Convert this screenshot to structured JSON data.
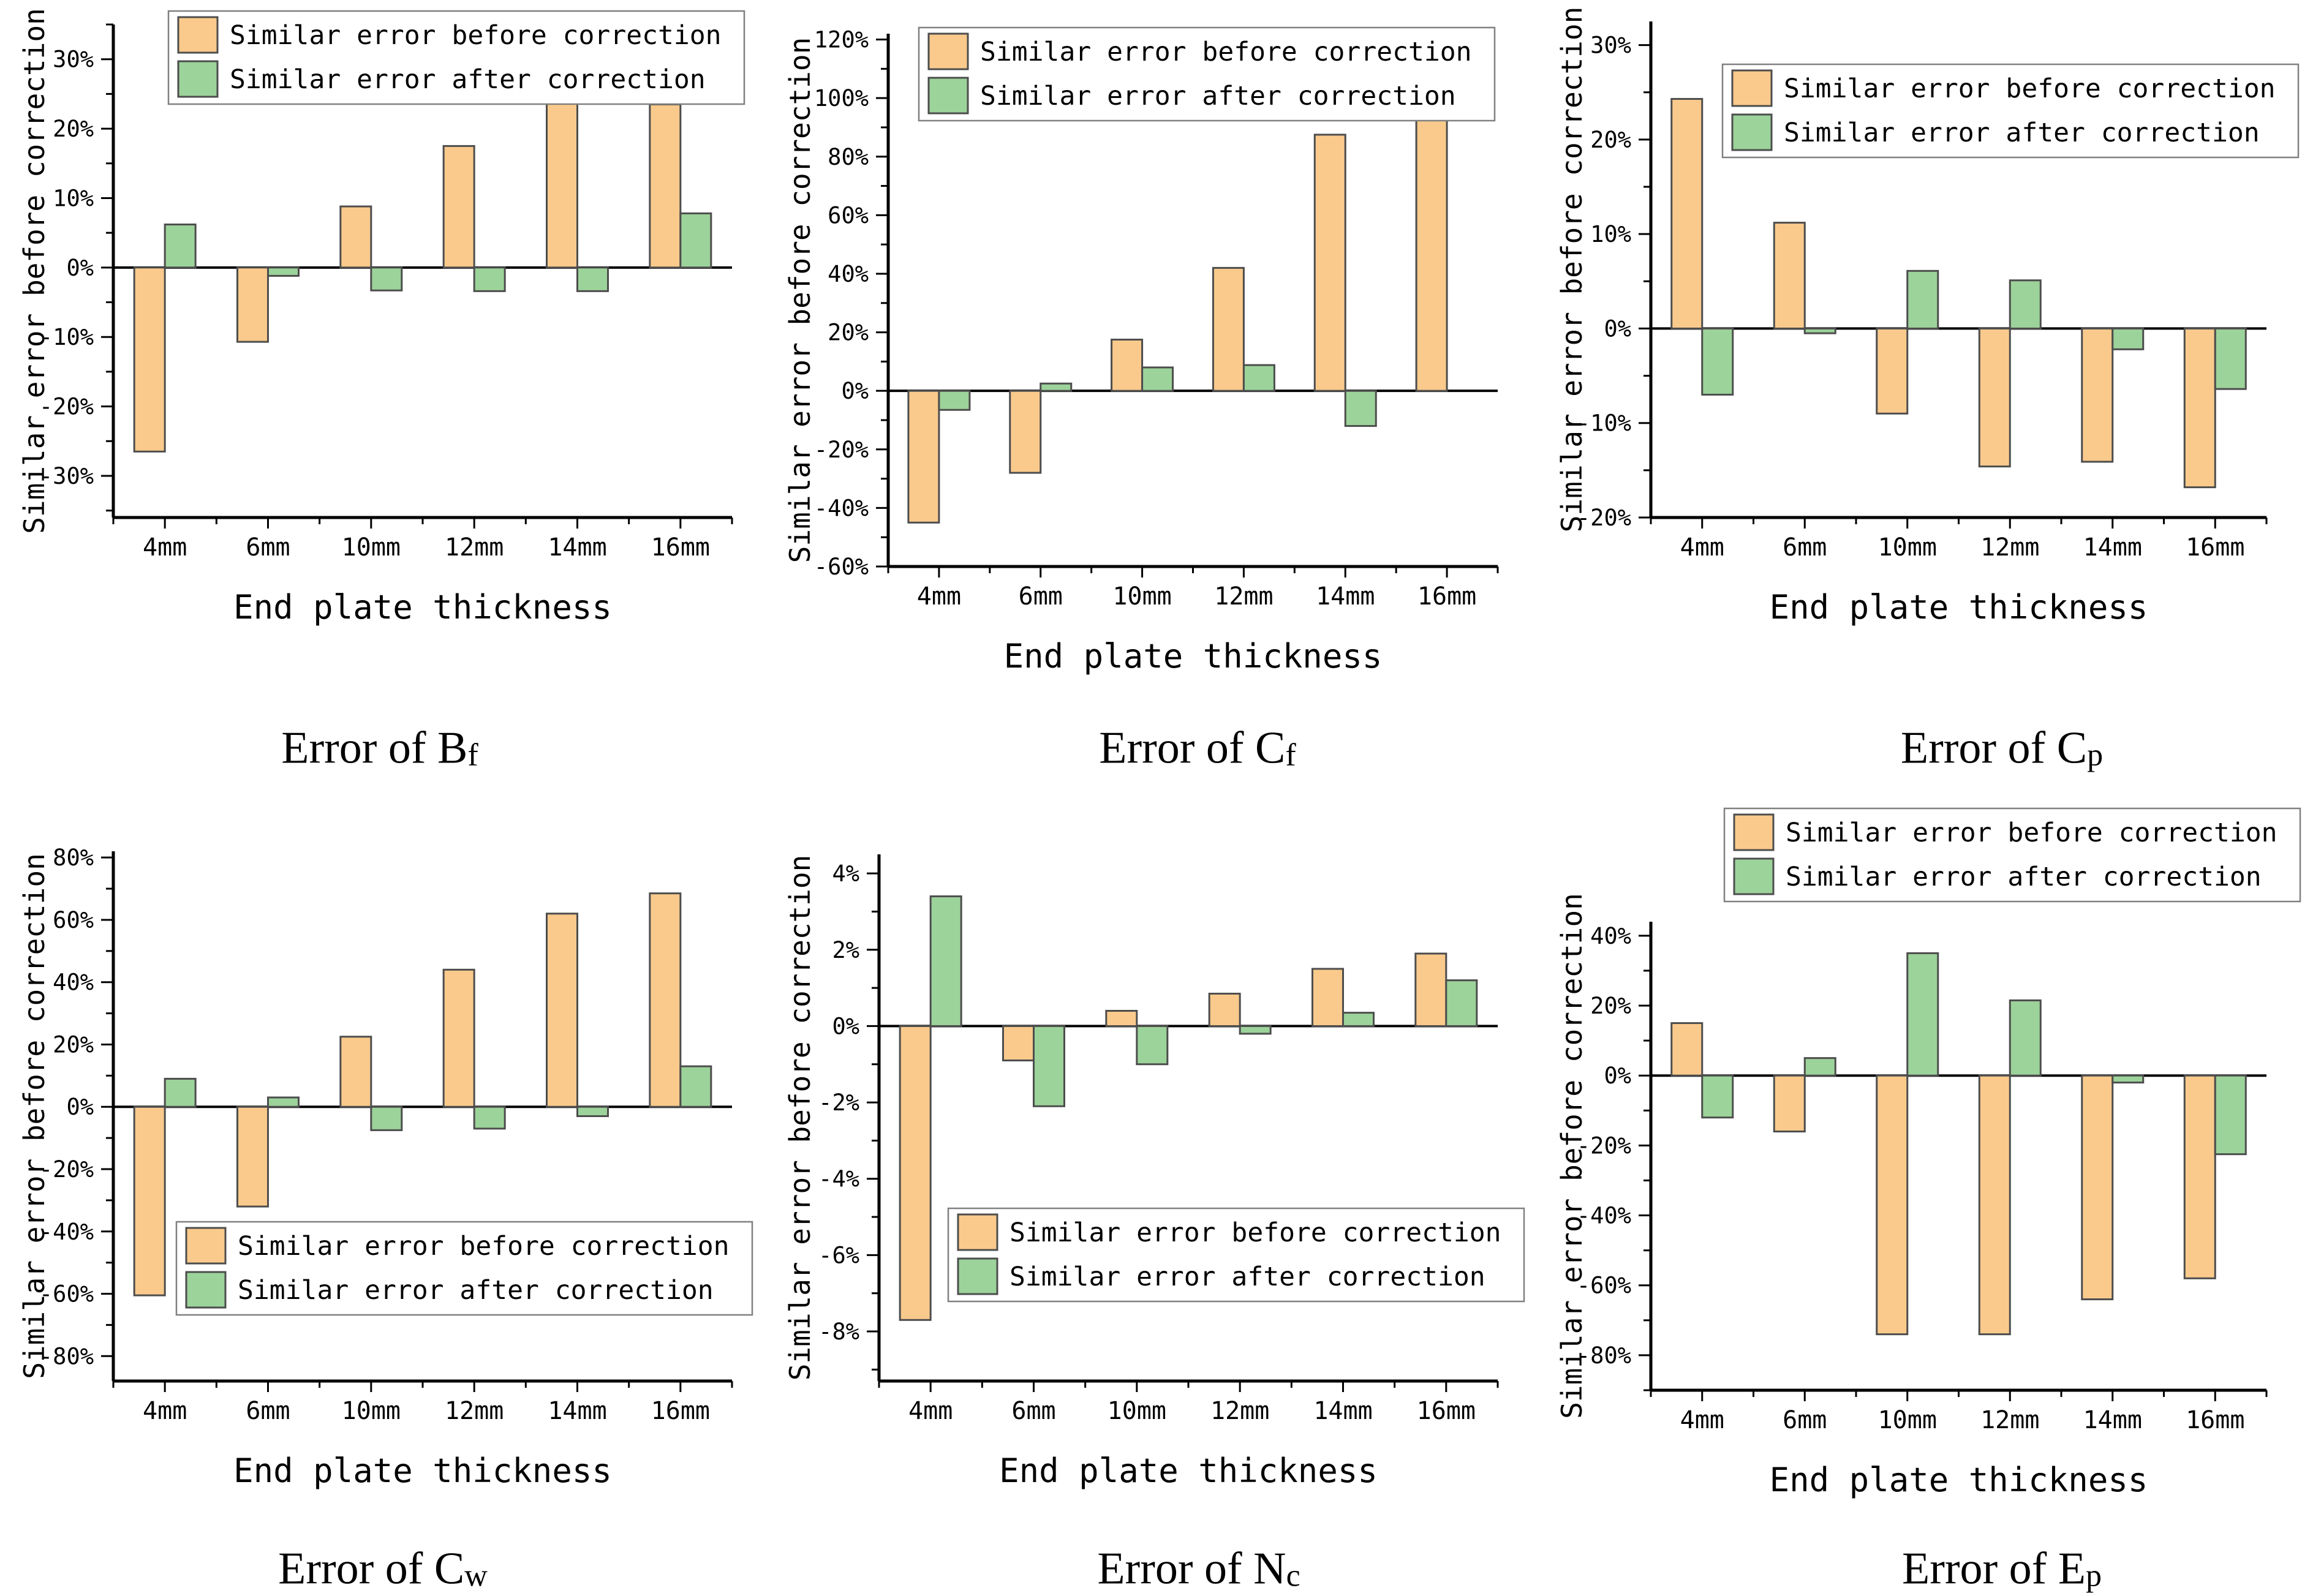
{
  "shared": {
    "xlabel": "End plate thickness",
    "ylabel": "Similar error before correction",
    "categories": [
      "4mm",
      "6mm",
      "10mm",
      "12mm",
      "14mm",
      "16mm"
    ],
    "legend_labels": [
      "Similar error before correction",
      "Similar error after correction"
    ],
    "colors": {
      "before_fill": "#FACA8C",
      "after_fill": "#9CD39A",
      "bar_border": "#4D4D4D",
      "axis": "#000000",
      "legend_border": "#808080",
      "legend_bg": "#FFFFFF",
      "text": "#000000",
      "background": "#FFFFFF"
    }
  },
  "chart_data": [
    {
      "id": "bf",
      "type": "bar",
      "caption": {
        "main": "Error of B",
        "sub": "f"
      },
      "xlabel": "End plate thickness",
      "ylabel": "Similar error before correction",
      "categories": [
        "4mm",
        "6mm",
        "10mm",
        "12mm",
        "14mm",
        "16mm"
      ],
      "series": [
        {
          "name": "Similar error before correction",
          "values": [
            -26.5,
            -10.7,
            8.8,
            17.5,
            26.0,
            23.5
          ]
        },
        {
          "name": "Similar error after correction",
          "values": [
            6.2,
            -1.2,
            -3.3,
            -3.4,
            -3.4,
            7.8
          ]
        }
      ],
      "ylim": [
        -36,
        35
      ],
      "yticks": [
        -30,
        -20,
        -10,
        0,
        10,
        20,
        30
      ],
      "ytick_minor_step": 5,
      "ytick_suffix": "%",
      "grid": false,
      "legend_position": {
        "x": 255,
        "y": 8
      }
    },
    {
      "id": "cf",
      "type": "bar",
      "caption": {
        "main": "Error of C",
        "sub": "f"
      },
      "xlabel": "End plate thickness",
      "ylabel": "Similar error before correction",
      "categories": [
        "4mm",
        "6mm",
        "10mm",
        "12mm",
        "14mm",
        "16mm"
      ],
      "series": [
        {
          "name": "Similar error before correction",
          "values": [
            -45,
            -28,
            17.5,
            42,
            87.5,
            101
          ]
        },
        {
          "name": "Similar error after correction",
          "values": [
            -6.5,
            2.5,
            8,
            8.8,
            -12,
            0
          ]
        }
      ],
      "ylim": [
        -60,
        122
      ],
      "yticks": [
        -60,
        -40,
        -20,
        0,
        20,
        40,
        60,
        80,
        100,
        120
      ],
      "ytick_minor_step": 10,
      "ytick_suffix": "%",
      "grid": false,
      "legend_position": {
        "x": 230,
        "y": 30
      }
    },
    {
      "id": "cp",
      "type": "bar",
      "caption": {
        "main": "Error of C",
        "sub": "p"
      },
      "xlabel": "End plate thickness",
      "ylabel": "Similar error before correction",
      "categories": [
        "4mm",
        "6mm",
        "10mm",
        "12mm",
        "14mm",
        "16mm"
      ],
      "series": [
        {
          "name": "Similar error before correction",
          "values": [
            24.3,
            11.2,
            -9,
            -14.6,
            -14.1,
            -16.8
          ]
        },
        {
          "name": "Similar error after correction",
          "values": [
            -7,
            -0.5,
            6.1,
            5.1,
            -2.2,
            -6.4
          ]
        }
      ],
      "ylim": [
        -20,
        32.5
      ],
      "yticks": [
        -20,
        -10,
        0,
        10,
        20,
        30
      ],
      "ytick_minor_step": 5,
      "ytick_suffix": "%",
      "grid": false,
      "legend_position": {
        "x": 282,
        "y": 95
      }
    },
    {
      "id": "cw",
      "type": "bar",
      "caption": {
        "main": "Error of C",
        "sub": "w"
      },
      "xlabel": "End plate thickness",
      "ylabel": "Similar error before correction",
      "categories": [
        "4mm",
        "6mm",
        "10mm",
        "12mm",
        "14mm",
        "16mm"
      ],
      "series": [
        {
          "name": "Similar error before correction",
          "values": [
            -60.5,
            -32,
            22.5,
            44,
            62,
            68.5
          ]
        },
        {
          "name": "Similar error after correction",
          "values": [
            9,
            3,
            -7.5,
            -7,
            -3,
            13
          ]
        }
      ],
      "ylim": [
        -88,
        82
      ],
      "yticks": [
        -80,
        -60,
        -40,
        -20,
        0,
        20,
        40,
        60,
        80
      ],
      "ytick_minor_step": 10,
      "ytick_suffix": "%",
      "grid": false,
      "legend_position": {
        "x": 268,
        "y": 640
      }
    },
    {
      "id": "nc",
      "type": "bar",
      "caption": {
        "main": "Error of N",
        "sub": "c"
      },
      "xlabel": "End plate thickness",
      "ylabel": "Similar error before correction",
      "categories": [
        "4mm",
        "6mm",
        "10mm",
        "12mm",
        "14mm",
        "16mm"
      ],
      "series": [
        {
          "name": "Similar error before correction",
          "values": [
            -7.7,
            -0.9,
            0.4,
            0.85,
            1.5,
            1.9
          ]
        },
        {
          "name": "Similar error after correction",
          "values": [
            3.4,
            -2.1,
            -1.0,
            -0.2,
            0.35,
            1.2
          ]
        }
      ],
      "ylim": [
        -9.3,
        4.5
      ],
      "yticks": [
        -8,
        -6,
        -4,
        -2,
        0,
        2,
        4
      ],
      "ytick_minor_step": 1,
      "ytick_suffix": "%",
      "grid": false,
      "legend_position": {
        "x": 278,
        "y": 618
      }
    },
    {
      "id": "ep",
      "type": "bar",
      "caption": {
        "main": "Error of E",
        "sub": "p"
      },
      "xlabel": "End plate thickness",
      "ylabel": "Similar error before correction",
      "categories": [
        "4mm",
        "6mm",
        "10mm",
        "12mm",
        "14mm",
        "16mm"
      ],
      "series": [
        {
          "name": "Similar error before correction",
          "values": [
            15,
            -16,
            -74,
            -74,
            -64,
            -58
          ]
        },
        {
          "name": "Similar error after correction",
          "values": [
            -12,
            5,
            35,
            21.5,
            -2,
            -22.5
          ]
        }
      ],
      "ylim": [
        -90,
        44
      ],
      "yticks": [
        -80,
        -60,
        -40,
        -20,
        0,
        20,
        40
      ],
      "ytick_minor_step": 10,
      "ytick_suffix": "%",
      "grid": false,
      "legend_position": {
        "x": 285,
        "y": 10
      }
    }
  ]
}
